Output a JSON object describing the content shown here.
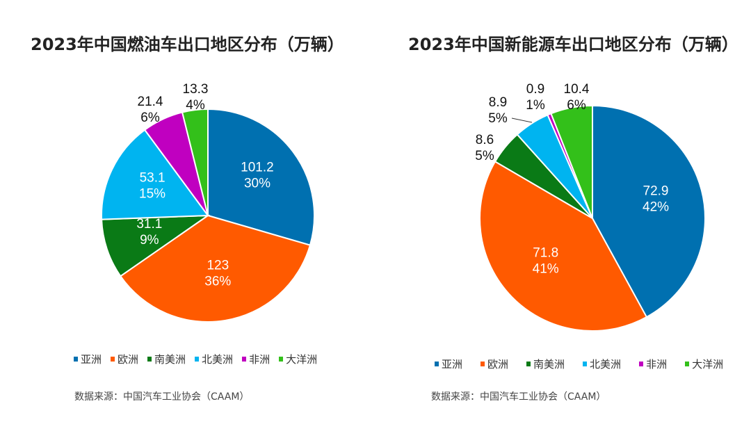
{
  "colors": {
    "亚洲": "#0070b0",
    "欧洲": "#ff5a00",
    "南美洲": "#0a7a16",
    "北美洲": "#00b4f0",
    "非洲": "#c000c0",
    "大洋洲": "#33c01a"
  },
  "chart_data": [
    {
      "type": "pie",
      "title": "2023年中国燃油车出口地区分布（万辆）",
      "categories": [
        "亚洲",
        "欧洲",
        "南美洲",
        "北美洲",
        "非洲",
        "大洋洲"
      ],
      "values": [
        101.2,
        123,
        31.1,
        53.1,
        21.4,
        13.3
      ],
      "percent_labels": [
        "30%",
        "36%",
        "9%",
        "15%",
        "6%",
        "4%"
      ],
      "value_labels": [
        "101.2",
        "123",
        "31.1",
        "53.1",
        "21.4",
        "13.3"
      ],
      "legend": [
        "亚洲",
        "欧洲",
        "南美洲",
        "北美洲",
        "非洲",
        "大洋洲"
      ],
      "legend_position": "bottom",
      "source": "数据来源：中国汽车工业协会（CAAM）"
    },
    {
      "type": "pie",
      "title": "2023年中国新能源车出口地区分布（万辆）",
      "categories": [
        "亚洲",
        "欧洲",
        "南美洲",
        "北美洲",
        "非洲",
        "大洋洲"
      ],
      "values": [
        72.9,
        71.8,
        8.6,
        8.9,
        0.9,
        10.4
      ],
      "percent_labels": [
        "42%",
        "41%",
        "5%",
        "5%",
        "1%",
        "6%"
      ],
      "value_labels": [
        "72.9",
        "71.8",
        "8.6",
        "8.9",
        "0.9",
        "10.4"
      ],
      "legend": [
        "亚洲",
        "欧洲",
        "南美洲",
        "北美洲",
        "非洲",
        "大洋洲"
      ],
      "legend_position": "bottom",
      "source": "数据来源：中国汽车工业协会（CAAM）"
    }
  ]
}
